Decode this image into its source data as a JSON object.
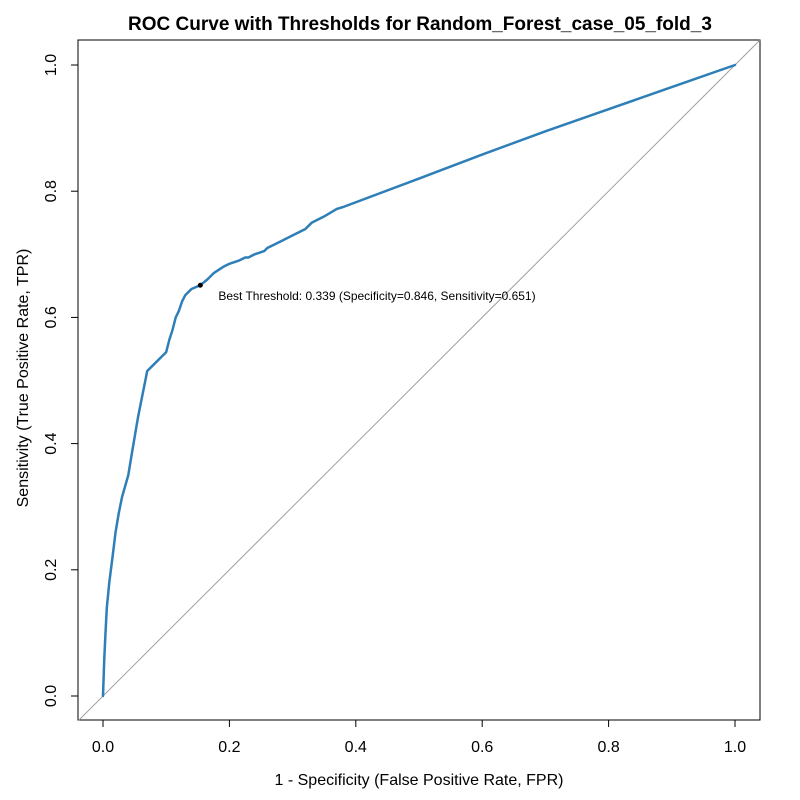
{
  "chart_data": {
    "type": "line",
    "title": "ROC Curve with Thresholds for Random_Forest_case_05_fold_3",
    "xlabel": "1 - Specificity (False Positive Rate, FPR)",
    "ylabel": "Sensitivity (True Positive Rate, TPR)",
    "xlim": [
      0,
      1
    ],
    "ylim": [
      0,
      1
    ],
    "x_ticks": [
      "0.0",
      "0.2",
      "0.4",
      "0.6",
      "0.8",
      "1.0"
    ],
    "y_ticks": [
      "0.0",
      "0.2",
      "0.4",
      "0.6",
      "0.8",
      "1.0"
    ],
    "grid": false,
    "line_color": "#2E7FB8",
    "diagonal_color": "#A0A0A0",
    "series": [
      {
        "x": [
          0.0,
          0.002,
          0.004,
          0.006,
          0.01,
          0.015,
          0.02,
          0.025,
          0.03,
          0.04,
          0.045,
          0.05,
          0.055,
          0.06,
          0.065,
          0.07,
          0.08,
          0.09,
          0.1,
          0.105,
          0.11,
          0.115,
          0.12,
          0.125,
          0.13,
          0.14,
          0.154,
          0.165,
          0.175,
          0.19,
          0.2,
          0.215,
          0.225,
          0.23,
          0.24,
          0.255,
          0.26,
          0.28,
          0.3,
          0.32,
          0.33,
          0.35,
          0.37,
          0.38,
          0.5,
          0.6,
          0.7,
          0.8,
          0.9,
          1.0
        ],
        "y": [
          0.0,
          0.06,
          0.1,
          0.14,
          0.18,
          0.22,
          0.26,
          0.29,
          0.315,
          0.35,
          0.38,
          0.41,
          0.44,
          0.465,
          0.49,
          0.515,
          0.525,
          0.535,
          0.545,
          0.565,
          0.58,
          0.6,
          0.61,
          0.625,
          0.635,
          0.645,
          0.651,
          0.66,
          0.67,
          0.68,
          0.685,
          0.69,
          0.695,
          0.695,
          0.7,
          0.705,
          0.71,
          0.72,
          0.73,
          0.74,
          0.75,
          0.76,
          0.772,
          0.775,
          0.82,
          0.858,
          0.895,
          0.93,
          0.965,
          1.0
        ]
      }
    ],
    "best_point": {
      "x": 0.154,
      "y": 0.651
    },
    "annotation": "Best Threshold: 0.339 (Specificity=0.846, Sensitivity=0.651)"
  }
}
